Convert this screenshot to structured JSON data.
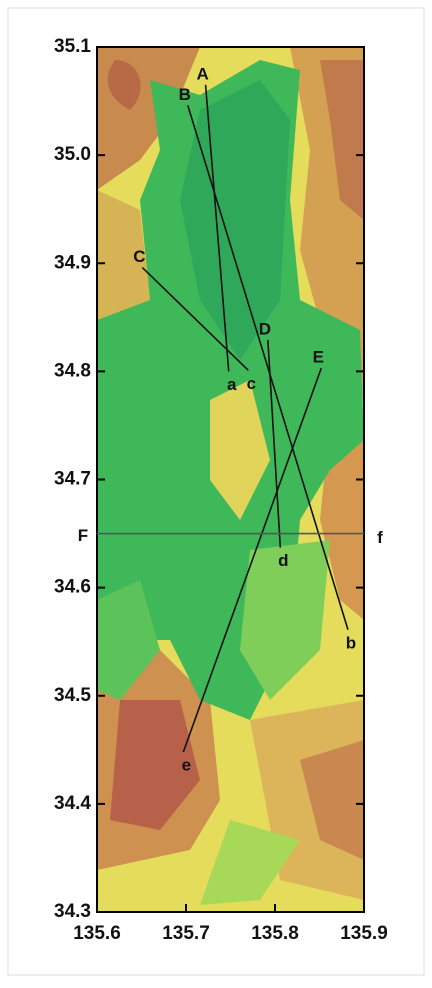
{
  "map": {
    "xlim": [
      135.6,
      135.9
    ],
    "ylim": [
      34.3,
      35.1
    ],
    "xticks": [
      135.6,
      135.7,
      135.8,
      135.9
    ],
    "yticks": [
      34.3,
      34.4,
      34.5,
      34.6,
      34.7,
      34.8,
      34.9,
      {
        "value": 35,
        "label": "35.0"
      },
      35.1
    ],
    "profiles": [
      {
        "start_label": "A",
        "end_label": "a",
        "start": [
          135.722,
          35.065
        ],
        "end": [
          135.748,
          34.8
        ]
      },
      {
        "start_label": "B",
        "end_label": "b",
        "start": [
          135.702,
          35.046
        ],
        "end": [
          135.882,
          34.561
        ]
      },
      {
        "start_label": "C",
        "end_label": "c",
        "start": [
          135.651,
          34.896
        ],
        "end": [
          135.77,
          34.801
        ]
      },
      {
        "start_label": "D",
        "end_label": "d",
        "start": [
          135.792,
          34.829
        ],
        "end": [
          135.806,
          34.637
        ]
      },
      {
        "start_label": "E",
        "end_label": "e",
        "start": [
          135.852,
          34.803
        ],
        "end": [
          135.697,
          34.448
        ]
      },
      {
        "start_label": "F",
        "end_label": "f",
        "start": [
          135.6,
          34.65
        ],
        "end": [
          135.9,
          34.65
        ]
      }
    ]
  }
}
